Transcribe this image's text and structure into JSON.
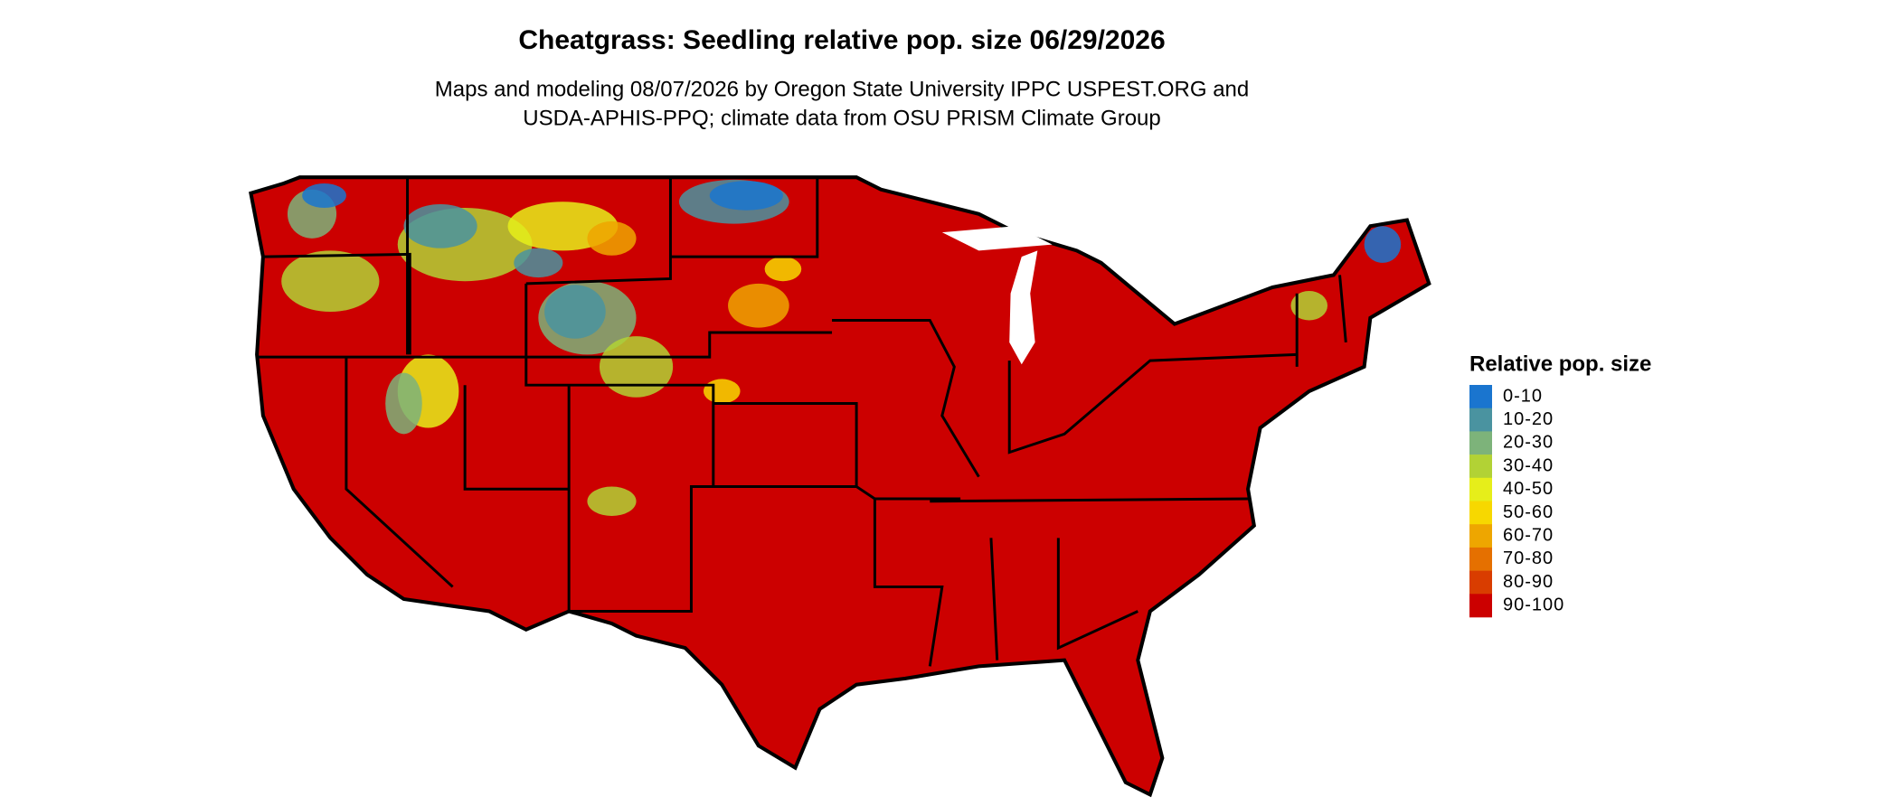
{
  "title": "Cheatgrass: Seedling relative pop. size 06/29/2026",
  "subtitle": [
    "Maps and modeling 08/07/2026 by Oregon State University IPPC USPEST.ORG and",
    "USDA-APHIS-PPQ; climate data from OSU PRISM Climate Group"
  ],
  "legend": {
    "title": "Relative pop. size",
    "items": [
      {
        "label": "0-10",
        "color": "#1a75cf"
      },
      {
        "label": "10-20",
        "color": "#4a93a0"
      },
      {
        "label": "20-30",
        "color": "#7db37a"
      },
      {
        "label": "30-40",
        "color": "#b2d235"
      },
      {
        "label": "40-50",
        "color": "#e6ee1a"
      },
      {
        "label": "50-60",
        "color": "#f7d800"
      },
      {
        "label": "60-70",
        "color": "#eea600"
      },
      {
        "label": "70-80",
        "color": "#e57000"
      },
      {
        "label": "80-90",
        "color": "#d93d00"
      },
      {
        "label": "90-100",
        "color": "#cc0000"
      }
    ]
  }
}
